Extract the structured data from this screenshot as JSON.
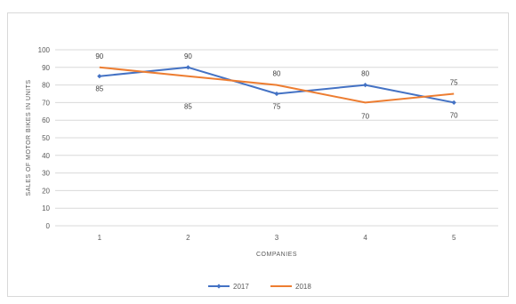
{
  "chart_data": {
    "type": "line",
    "title": "",
    "xlabel": "COMPANIES",
    "ylabel": "SALES OF MOTOR BIKES IN UNITS",
    "categories": [
      "1",
      "2",
      "3",
      "4",
      "5"
    ],
    "ylim": [
      0,
      100
    ],
    "yticks": [
      0,
      10,
      20,
      30,
      40,
      50,
      60,
      70,
      80,
      90,
      100
    ],
    "grid": true,
    "legend_position": "bottom",
    "series": [
      {
        "name": "2017",
        "color": "#4472c4",
        "marker": "diamond",
        "values": [
          85,
          90,
          75,
          80,
          70
        ],
        "data_labels": [
          "85",
          "",
          "75",
          "",
          "70"
        ]
      },
      {
        "name": "2018",
        "color": "#ed7d31",
        "marker": "none",
        "values": [
          90,
          85,
          80,
          70,
          75
        ],
        "data_labels": [
          "90",
          "",
          "80",
          "70",
          "75"
        ]
      }
    ],
    "extra_labels": [
      {
        "category": "2",
        "value": 90,
        "text": "90",
        "position": "above"
      },
      {
        "category": "2",
        "value": 85,
        "text": "85",
        "position": "below"
      },
      {
        "category": "4",
        "value": 80,
        "text": "80",
        "position": "above"
      }
    ]
  }
}
